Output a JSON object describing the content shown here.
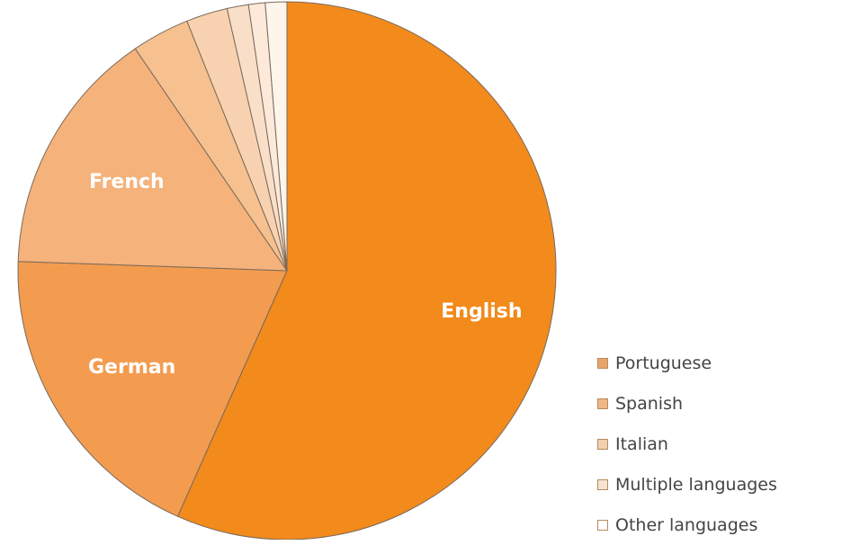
{
  "chart_data": {
    "type": "pie",
    "title": "",
    "slices": [
      {
        "name": "English",
        "value": 57.0,
        "color": "#f28a1c",
        "label_visible": true
      },
      {
        "name": "German",
        "value": 19.0,
        "color": "#f39c4f",
        "label_visible": true
      },
      {
        "name": "French",
        "value": 15.0,
        "color": "#f5b27b",
        "label_visible": true
      },
      {
        "name": "Portuguese",
        "value": 3.5,
        "color": "#f6c08f",
        "label_visible": false
      },
      {
        "name": "Spanish",
        "value": 2.5,
        "color": "#f8d2b0",
        "label_visible": false
      },
      {
        "name": "Italian",
        "value": 1.3,
        "color": "#fadfc8",
        "label_visible": false
      },
      {
        "name": "Multiple languages",
        "value": 1.0,
        "color": "#fce9da",
        "label_visible": false
      },
      {
        "name": "Other languages",
        "value": 1.3,
        "color": "#fef5ec",
        "label_visible": false
      }
    ],
    "legend": {
      "placement": "bottom-right",
      "items": [
        {
          "label": "Portuguese",
          "color": "#e8a46a"
        },
        {
          "label": "Spanish",
          "color": "#edb885"
        },
        {
          "label": "Italian",
          "color": "#f2cfb0"
        },
        {
          "label": "Multiple languages",
          "color": "#f7e3d3"
        },
        {
          "label": "Other languages",
          "color": "#ffffff"
        }
      ]
    },
    "start_direction": "top",
    "direction": "clockwise",
    "slice_edge_color": "#7a6a5c"
  }
}
